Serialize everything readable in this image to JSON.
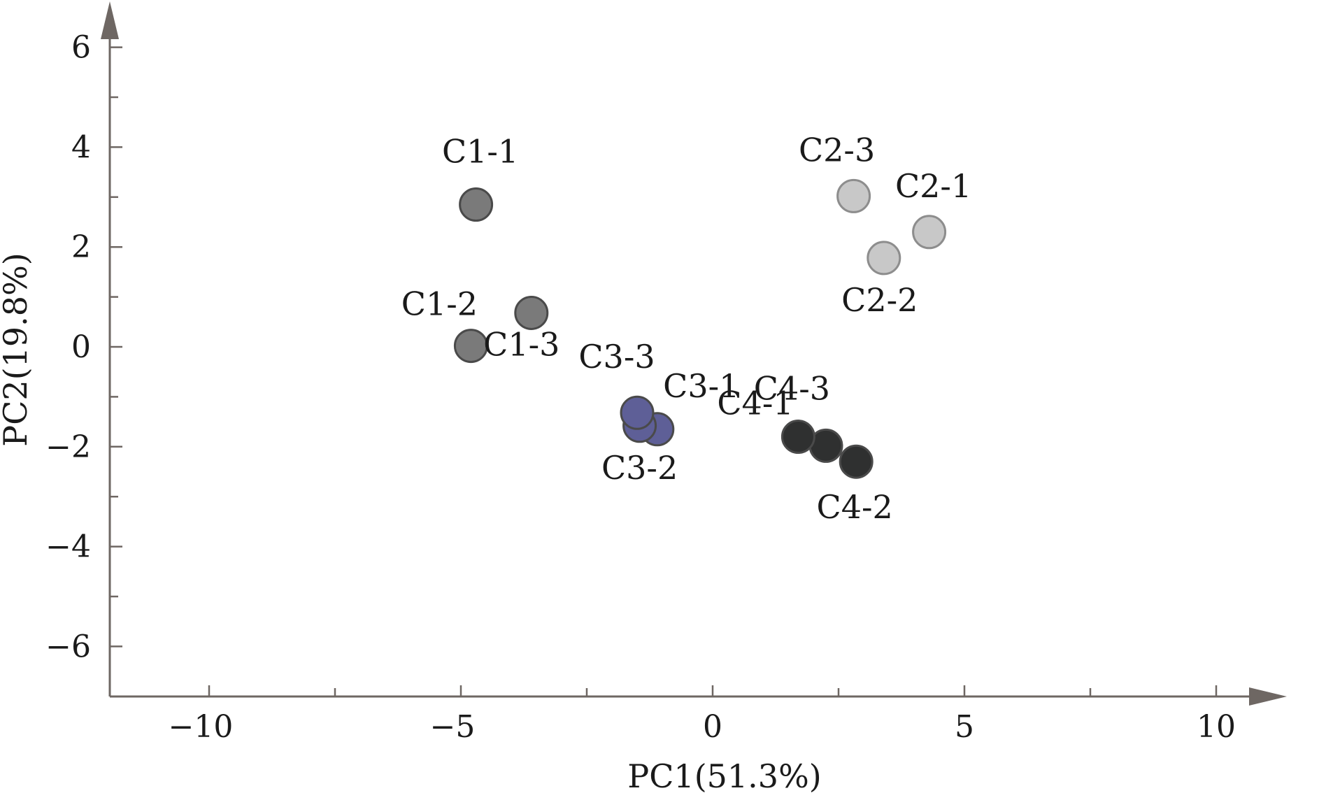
{
  "chart_data": {
    "type": "scatter",
    "xlabel": "PC1(51.3%)",
    "ylabel": "PC2(19.8%)",
    "xlim": [
      -12,
      11.5
    ],
    "ylim": [
      -7,
      6.5
    ],
    "xticks": [
      -10,
      -5,
      0,
      5,
      10
    ],
    "xtick_labels": [
      "−10",
      "−5",
      "0",
      "5",
      "10"
    ],
    "yticks": [
      -6,
      -4,
      -2,
      0,
      2,
      4,
      6
    ],
    "ytick_labels": [
      "−6",
      "−4",
      "−2",
      "0",
      "2",
      "4",
      "6"
    ],
    "grid": false,
    "groups": [
      {
        "color": "#7a7a7a",
        "points": [
          {
            "label": "C1-1",
            "x": -4.7,
            "y": 2.85
          },
          {
            "label": "C1-2",
            "x": -4.8,
            "y": 0.02
          },
          {
            "label": "C1-3",
            "x": -3.6,
            "y": 0.68
          }
        ]
      },
      {
        "color": "#c8c8c8",
        "points": [
          {
            "label": "C2-1",
            "x": 4.3,
            "y": 2.3
          },
          {
            "label": "C2-2",
            "x": 3.4,
            "y": 1.78
          },
          {
            "label": "C2-3",
            "x": 2.8,
            "y": 3.02
          }
        ]
      },
      {
        "color": "#5e5f97",
        "points": [
          {
            "label": "C3-1",
            "x": -1.1,
            "y": -1.65
          },
          {
            "label": "C3-2",
            "x": -1.45,
            "y": -1.58
          },
          {
            "label": "C3-3",
            "x": -1.5,
            "y": -1.32
          }
        ]
      },
      {
        "color": "#2f3030",
        "points": [
          {
            "label": "C4-1",
            "x": 2.25,
            "y": -1.98
          },
          {
            "label": "C4-2",
            "x": 2.85,
            "y": -2.3
          },
          {
            "label": "C4-3",
            "x": 1.7,
            "y": -1.8
          }
        ]
      }
    ]
  }
}
